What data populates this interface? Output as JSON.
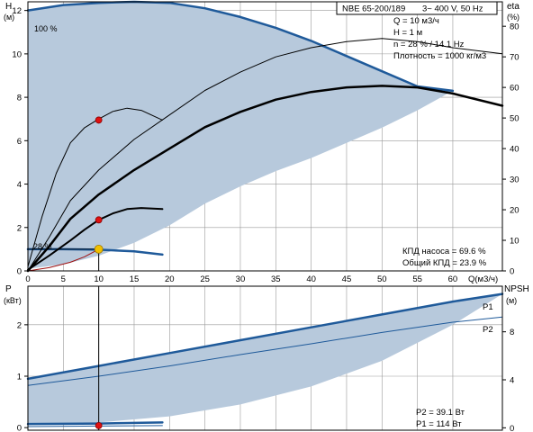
{
  "header": {
    "model": "NBE 65-200/189",
    "supply": "3~ 400 V, 50 Hz"
  },
  "info": {
    "q": "Q = 10 м3/ч",
    "h": "H = 1 м",
    "n": "n = 28 % / 14.1 Hz",
    "density": "Плотность = 1000 кг/м3"
  },
  "efficiency_text": {
    "pump": "КПД насоса = 69.6 %",
    "total": "Общий КПД = 23.9 %"
  },
  "power_text": {
    "p2": "P2 = 39.1 Вт",
    "p1": "P1 = 114 Вт"
  },
  "colors": {
    "fill": "#b7c9dc",
    "blue_line": "#1f5a9a",
    "black_line": "#000000",
    "red_line": "#a01010",
    "red_point": "#e01010",
    "yellow_point": "#f0c000",
    "axis": "#000000",
    "grid": "#999999"
  },
  "chart_data": [
    {
      "type": "line",
      "name": "head",
      "x_label": "Q(м3/ч)",
      "y_label": "H",
      "y_unit": "(м)",
      "y2_label": "eta",
      "y2_unit": "(%)",
      "x_ticks": [
        "0",
        "5",
        "10",
        "15",
        "20",
        "25",
        "30",
        "35",
        "40",
        "45",
        "50",
        "55",
        "60"
      ],
      "y_ticks": [
        "0",
        "2",
        "4",
        "6",
        "8",
        "10",
        "12"
      ],
      "y2_ticks": [
        "0",
        "10",
        "20",
        "30",
        "40",
        "50",
        "60",
        "70",
        "80"
      ],
      "xlim": [
        0,
        67
      ],
      "ylim": [
        0,
        12.4
      ],
      "y2lim": [
        0,
        88
      ],
      "labels": {
        "max_speed": "100 %",
        "min_speed": "28 %"
      },
      "region_upper": [
        [
          0,
          12.0
        ],
        [
          5,
          12.25
        ],
        [
          10,
          12.35
        ],
        [
          15,
          12.4
        ],
        [
          20,
          12.35
        ],
        [
          25,
          12.1
        ],
        [
          30,
          11.7
        ],
        [
          35,
          11.2
        ],
        [
          40,
          10.6
        ],
        [
          45,
          9.9
        ],
        [
          50,
          9.2
        ],
        [
          55,
          8.5
        ],
        [
          60,
          8.3
        ]
      ],
      "region_lower": [
        [
          60,
          8.3
        ],
        [
          55,
          7.4
        ],
        [
          50,
          6.6
        ],
        [
          45,
          5.9
        ],
        [
          40,
          5.2
        ],
        [
          35,
          4.6
        ],
        [
          30,
          3.9
        ],
        [
          25,
          3.1
        ],
        [
          20,
          2.1
        ],
        [
          15,
          1.3
        ],
        [
          10,
          0.7
        ],
        [
          5,
          0.3
        ],
        [
          0,
          0.1
        ]
      ],
      "series": [
        {
          "key": "curve_100",
          "color": "blue",
          "width": 2.5,
          "points": [
            [
              0,
              12.0
            ],
            [
              5,
              12.25
            ],
            [
              10,
              12.35
            ],
            [
              15,
              12.4
            ],
            [
              20,
              12.35
            ],
            [
              25,
              12.1
            ],
            [
              30,
              11.7
            ],
            [
              35,
              11.2
            ],
            [
              40,
              10.6
            ],
            [
              45,
              9.9
            ],
            [
              50,
              9.2
            ],
            [
              55,
              8.5
            ],
            [
              60,
              8.3
            ]
          ]
        },
        {
          "key": "curve_28",
          "color": "blue",
          "width": 2.5,
          "points": [
            [
              0,
              1.0
            ],
            [
              5,
              1.0
            ],
            [
              10,
              0.98
            ],
            [
              15,
              0.9
            ],
            [
              19,
              0.75
            ]
          ]
        },
        {
          "key": "curve_mid_high",
          "color": "black",
          "width": 1,
          "points": [
            [
              0,
              0.2
            ],
            [
              2,
              2.5
            ],
            [
              4,
              4.5
            ],
            [
              6,
              5.9
            ],
            [
              8,
              6.6
            ],
            [
              10,
              7.0
            ],
            [
              12,
              7.35
            ],
            [
              14,
              7.5
            ],
            [
              16,
              7.4
            ],
            [
              18,
              7.1
            ],
            [
              19,
              6.95
            ]
          ]
        },
        {
          "key": "curve_mid_low",
          "color": "black",
          "width": 2,
          "points": [
            [
              0,
              0.05
            ],
            [
              3,
              0.7
            ],
            [
              6,
              1.4
            ],
            [
              8,
              1.9
            ],
            [
              10,
              2.35
            ],
            [
              12,
              2.65
            ],
            [
              14,
              2.85
            ],
            [
              16,
              2.9
            ],
            [
              19,
              2.85
            ]
          ]
        },
        {
          "key": "system_curve",
          "color": "red",
          "width": 1,
          "points": [
            [
              0,
              0
            ],
            [
              3,
              0.15
            ],
            [
              6,
              0.4
            ],
            [
              8,
              0.65
            ],
            [
              10,
              1.0
            ]
          ]
        }
      ],
      "eta_series": [
        {
          "key": "eta_thin",
          "color": "black",
          "width": 1,
          "points": [
            [
              0,
              0
            ],
            [
              3,
              11
            ],
            [
              6,
              23
            ],
            [
              10,
              33
            ],
            [
              15,
              43
            ],
            [
              20,
              51
            ],
            [
              25,
              59
            ],
            [
              30,
              65
            ],
            [
              35,
              70
            ],
            [
              40,
              73
            ],
            [
              45,
              75
            ],
            [
              50,
              76
            ],
            [
              55,
              75
            ],
            [
              60,
              73
            ],
            [
              67,
              71
            ]
          ]
        },
        {
          "key": "eta_thick",
          "color": "black",
          "width": 2.5,
          "points": [
            [
              0,
              0
            ],
            [
              3,
              8
            ],
            [
              6,
              17
            ],
            [
              10,
              25
            ],
            [
              15,
              33
            ],
            [
              20,
              40
            ],
            [
              25,
              47
            ],
            [
              30,
              52
            ],
            [
              35,
              56
            ],
            [
              40,
              58.5
            ],
            [
              45,
              60
            ],
            [
              50,
              60.5
            ],
            [
              55,
              60
            ],
            [
              60,
              58
            ],
            [
              67,
              54
            ]
          ]
        }
      ],
      "markers": [
        {
          "key": "red_high",
          "x": 10,
          "y": 6.95,
          "color": "red"
        },
        {
          "key": "red_low",
          "x": 10,
          "y": 2.35,
          "color": "red"
        },
        {
          "key": "operating_point",
          "x": 10,
          "y": 1.0,
          "color": "yellow"
        }
      ],
      "guide": {
        "x": 10,
        "y": 1.0
      }
    },
    {
      "type": "line",
      "name": "power",
      "y_label": "P",
      "y_unit": "(кВт)",
      "y2_label": "NPSH",
      "y2_unit": "(м)",
      "x_ticks": [
        "0",
        "5",
        "10",
        "15",
        "20",
        "25",
        "30",
        "35",
        "40",
        "45",
        "50",
        "55",
        "60"
      ],
      "y_ticks": [
        "0",
        "1",
        "2"
      ],
      "y2_ticks": [
        "0",
        "4",
        "8"
      ],
      "xlim": [
        0,
        67
      ],
      "ylim": [
        -0.05,
        2.75
      ],
      "y2lim": [
        -0.2,
        11.8
      ],
      "series_labels": {
        "p1": "P1",
        "p2": "P2"
      },
      "region_upper": [
        [
          0,
          0.95
        ],
        [
          10,
          1.2
        ],
        [
          20,
          1.45
        ],
        [
          30,
          1.7
        ],
        [
          40,
          1.95
        ],
        [
          50,
          2.2
        ],
        [
          60,
          2.45
        ],
        [
          67,
          2.6
        ]
      ],
      "region_lower": [
        [
          67,
          2.6
        ],
        [
          60,
          2.0
        ],
        [
          50,
          1.3
        ],
        [
          40,
          0.8
        ],
        [
          30,
          0.45
        ],
        [
          20,
          0.22
        ],
        [
          10,
          0.1
        ],
        [
          0,
          0.05
        ]
      ],
      "series": [
        {
          "key": "p1_100",
          "color": "blue",
          "width": 2.5,
          "points": [
            [
              0,
              0.95
            ],
            [
              10,
              1.2
            ],
            [
              20,
              1.45
            ],
            [
              30,
              1.7
            ],
            [
              40,
              1.95
            ],
            [
              50,
              2.2
            ],
            [
              60,
              2.45
            ],
            [
              67,
              2.6
            ]
          ]
        },
        {
          "key": "p2_100",
          "color": "blue",
          "width": 1,
          "points": [
            [
              0,
              0.82
            ],
            [
              10,
              1.0
            ],
            [
              20,
              1.2
            ],
            [
              30,
              1.42
            ],
            [
              40,
              1.63
            ],
            [
              50,
              1.85
            ],
            [
              60,
              2.05
            ],
            [
              67,
              2.15
            ]
          ]
        },
        {
          "key": "p1_28",
          "color": "blue",
          "width": 2.5,
          "points": [
            [
              0,
              0.07
            ],
            [
              10,
              0.08
            ],
            [
              19,
              0.1
            ]
          ]
        },
        {
          "key": "p2_28",
          "color": "blue",
          "width": 1,
          "points": [
            [
              0,
              0.02
            ],
            [
              10,
              0.03
            ],
            [
              19,
              0.04
            ]
          ]
        }
      ],
      "markers": [
        {
          "key": "p1_point",
          "x": 10,
          "y": 0.04,
          "color": "red"
        }
      ],
      "guide_x": 10
    }
  ]
}
